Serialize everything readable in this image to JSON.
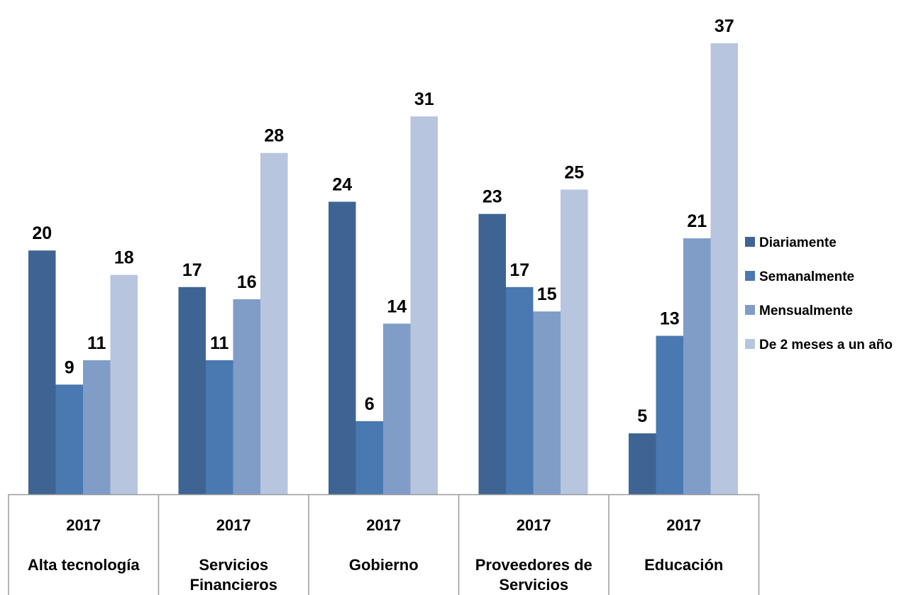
{
  "chart_data": {
    "type": "bar",
    "categories": [
      {
        "year": "2017",
        "name_lines": [
          "Alta tecnología"
        ]
      },
      {
        "year": "2017",
        "name_lines": [
          "Servicios",
          "Financieros"
        ]
      },
      {
        "year": "2017",
        "name_lines": [
          "Gobierno"
        ]
      },
      {
        "year": "2017",
        "name_lines": [
          "Proveedores de",
          "Servicios"
        ]
      },
      {
        "year": "2017",
        "name_lines": [
          "Educación"
        ]
      }
    ],
    "series": [
      {
        "name": "Diariamente",
        "color": "#3E6494",
        "values": [
          20,
          17,
          24,
          23,
          5
        ]
      },
      {
        "name": "Semanalmente",
        "color": "#4A78B0",
        "values": [
          9,
          11,
          6,
          17,
          13
        ]
      },
      {
        "name": "Mensualmente",
        "color": "#809DC8",
        "values": [
          11,
          16,
          14,
          15,
          21
        ]
      },
      {
        "name": "De 2 meses a un año",
        "color": "#B7C5DF",
        "values": [
          18,
          28,
          31,
          25,
          37
        ]
      }
    ],
    "ylim": [
      0,
      37
    ],
    "grid": false,
    "legend_position": "right",
    "data_labels": true
  }
}
